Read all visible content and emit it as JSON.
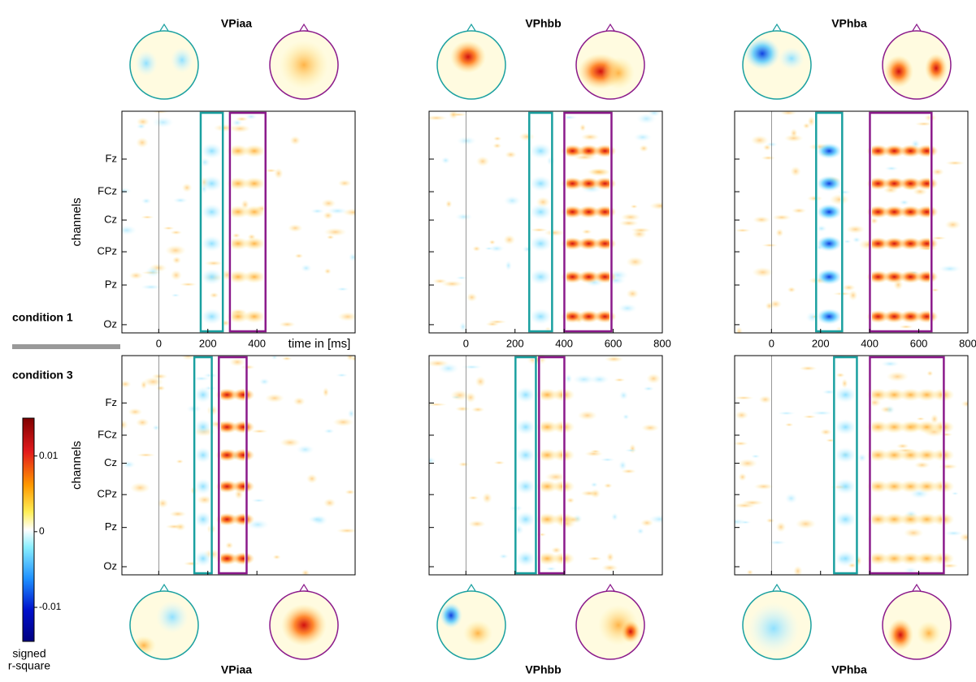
{
  "figure": {
    "subjects": [
      "VPiaa",
      "VPhbb",
      "VPhba"
    ],
    "conditions": [
      "condition 1",
      "condition 3"
    ],
    "channels": [
      "Fz",
      "FCz",
      "Cz",
      "CPz",
      "Pz",
      "Oz"
    ],
    "y_axis_label": "channels",
    "x_axis_label": "time in [ms]",
    "panels": [
      {
        "xlim": [
          -150,
          800
        ],
        "xticks": [
          0,
          200,
          400
        ],
        "windows": [
          {
            "early": [
              171,
              261
            ],
            "late": [
              290,
              435
            ]
          },
          {
            "early": [
              145,
              216
            ],
            "late": [
              245,
              358
            ]
          }
        ]
      },
      {
        "xlim": [
          -150,
          800
        ],
        "xticks": [
          0,
          200,
          400,
          600,
          800
        ],
        "windows": [
          {
            "early": [
              258,
              351
            ],
            "late": [
              401,
              593
            ]
          },
          {
            "early": [
              202,
              285
            ],
            "late": [
              298,
              401
            ]
          }
        ]
      },
      {
        "xlim": [
          -150,
          800
        ],
        "xticks": [
          0,
          200,
          400,
          600,
          800
        ],
        "windows": [
          {
            "early": [
              182,
              288
            ],
            "late": [
              401,
              652
            ]
          },
          {
            "early": [
              255,
              348
            ],
            "late": [
              401,
              702
            ]
          }
        ]
      }
    ],
    "colorbar": {
      "label": [
        "signed",
        "r-square"
      ],
      "ylim": [
        -0.0145,
        0.015
      ],
      "yticks": [
        0.01,
        0,
        -0.01
      ]
    }
  }
}
